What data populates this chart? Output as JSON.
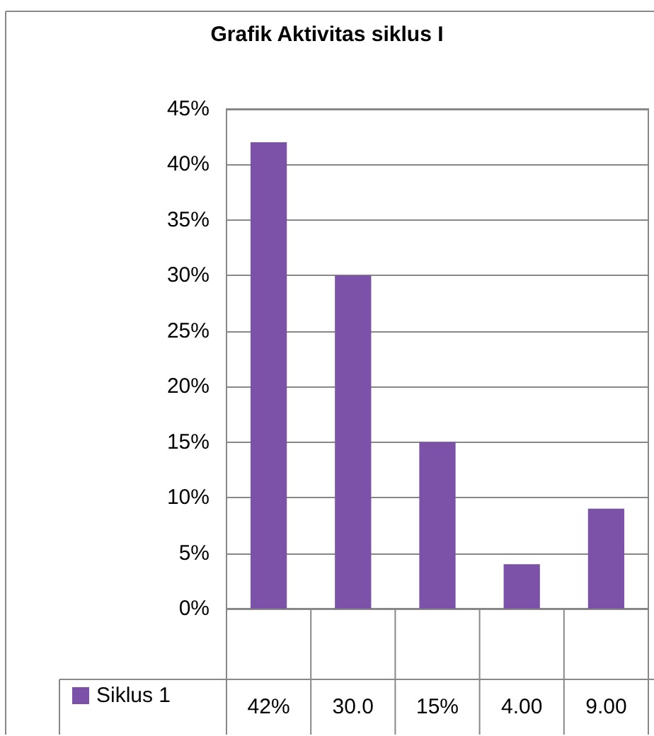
{
  "chart_data": {
    "type": "bar",
    "title": "Grafik Aktivitas siklus I",
    "categories": [
      null,
      null,
      null,
      null,
      null
    ],
    "series": [
      {
        "name": "Siklus 1",
        "color": "#7b52a8",
        "values": [
          42,
          30,
          15,
          4,
          9
        ],
        "value_labels": [
          "42%",
          "30.0",
          "15%",
          "4.00",
          "9.00"
        ]
      }
    ],
    "ylim": [
      0,
      45
    ],
    "yticks": [
      {
        "value": 0,
        "label": "0%"
      },
      {
        "value": 5,
        "label": "5%"
      },
      {
        "value": 10,
        "label": "10%"
      },
      {
        "value": 15,
        "label": "15%"
      },
      {
        "value": 20,
        "label": "20%"
      },
      {
        "value": 25,
        "label": "25%"
      },
      {
        "value": 30,
        "label": "30%"
      },
      {
        "value": 35,
        "label": "35%"
      },
      {
        "value": 40,
        "label": "40%"
      },
      {
        "value": 45,
        "label": "45%"
      }
    ],
    "grid": "y",
    "legend": "bottom left"
  }
}
